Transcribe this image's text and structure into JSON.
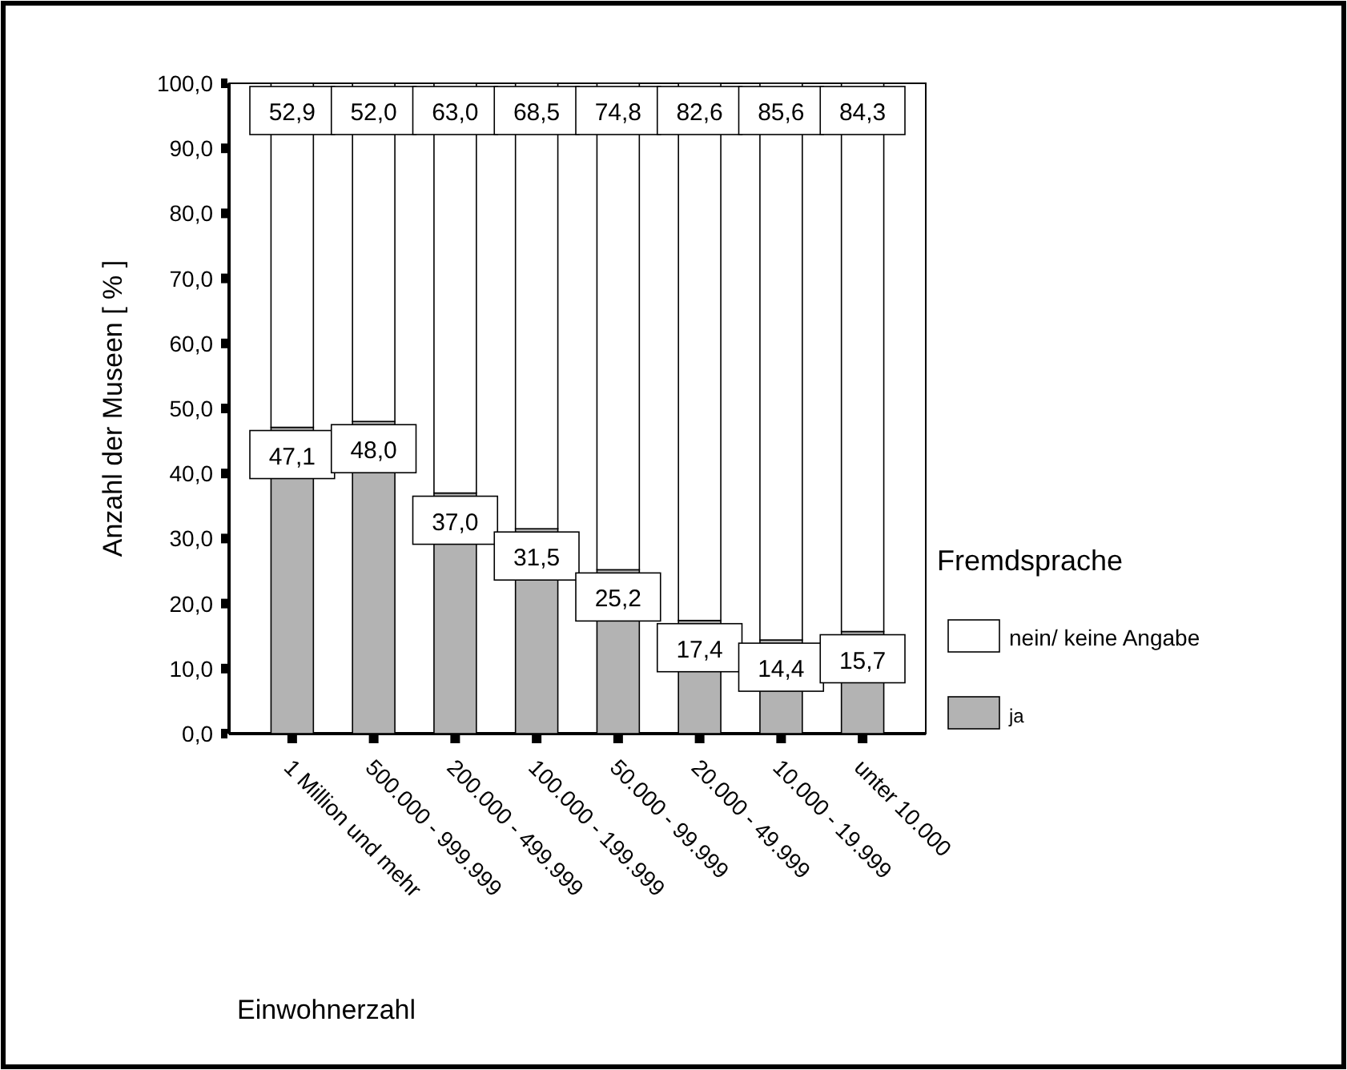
{
  "chart_data": {
    "type": "bar",
    "stacked": true,
    "xlabel": "Einwohnerzahl",
    "ylabel": "Anzahl der Museen  [ % ]",
    "legend_title": "Fremdsprache",
    "legend": "right",
    "categories": [
      "1 Million und mehr",
      "500.000 - 999.999",
      "200.000 - 499.999",
      "100.000 - 199.999",
      "50.000 - 99.999",
      "20.000 - 49.999",
      "10.000 - 19.999",
      "unter 10.000"
    ],
    "series": [
      {
        "name": "ja",
        "color": "#b3b3b3",
        "values": [
          47.1,
          48.0,
          37.0,
          31.5,
          25.2,
          17.4,
          14.4,
          15.7
        ],
        "value_labels": [
          "47,1",
          "48,0",
          "37,0",
          "31,5",
          "25,2",
          "17,4",
          "14,4",
          "15,7"
        ]
      },
      {
        "name": "nein/ keine Angabe",
        "color": "#ffffff",
        "values": [
          52.9,
          52.0,
          63.0,
          68.5,
          74.8,
          82.6,
          85.6,
          84.3
        ],
        "value_labels": [
          "52,9",
          "52,0",
          "63,0",
          "68,5",
          "74,8",
          "82,6",
          "85,6",
          "84,3"
        ]
      }
    ],
    "ylim": [
      0,
      100
    ],
    "yticks": [
      {
        "value": 0,
        "label": "0,0"
      },
      {
        "value": 10,
        "label": "10,0"
      },
      {
        "value": 20,
        "label": "20,0"
      },
      {
        "value": 30,
        "label": "30,0"
      },
      {
        "value": 40,
        "label": "40,0"
      },
      {
        "value": 50,
        "label": "50,0"
      },
      {
        "value": 60,
        "label": "60,0"
      },
      {
        "value": 70,
        "label": "70,0"
      },
      {
        "value": 80,
        "label": "80,0"
      },
      {
        "value": 90,
        "label": "90,0"
      },
      {
        "value": 100,
        "label": "100,0"
      }
    ]
  }
}
